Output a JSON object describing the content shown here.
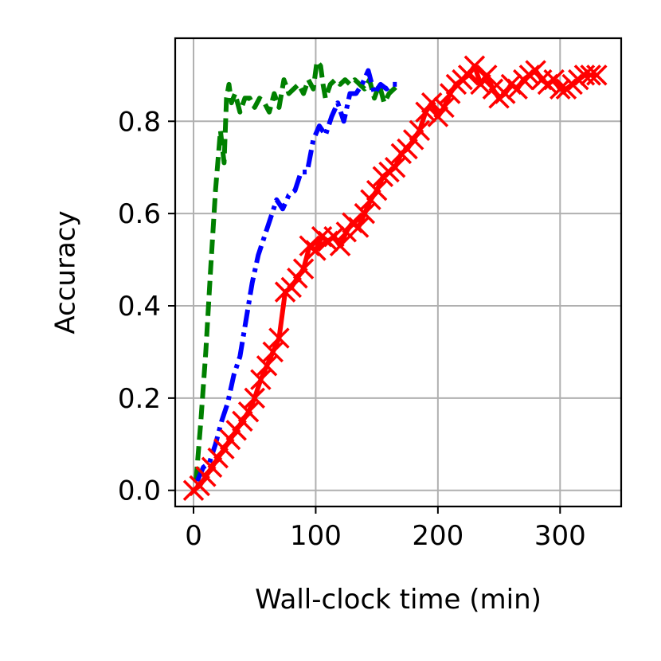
{
  "chart_data": {
    "type": "line",
    "title": "",
    "xlabel": "Wall-clock time (min)",
    "ylabel": "Accuracy",
    "xlim": [
      -15,
      350
    ],
    "ylim": [
      -0.035,
      0.98
    ],
    "xticks": [
      0,
      100,
      200,
      300
    ],
    "xtick_labels": [
      "0",
      "100",
      "200",
      "300"
    ],
    "yticks": [
      0.0,
      0.2,
      0.4,
      0.6,
      0.8
    ],
    "ytick_labels": [
      "0.0",
      "0.2",
      "0.4",
      "0.6",
      "0.8"
    ],
    "grid": true,
    "series": [
      {
        "color": "#008000",
        "line_style": "dashed",
        "marker": "none",
        "x": [
          2,
          6,
          10,
          14,
          18,
          22,
          25,
          27,
          29,
          31,
          34,
          38,
          42,
          46,
          50,
          54,
          58,
          62,
          66,
          70,
          74,
          78,
          82,
          86,
          90,
          94,
          98,
          101,
          104,
          106,
          108,
          112,
          116,
          120,
          124,
          128,
          132,
          136,
          140,
          144,
          148,
          152,
          156,
          160,
          164,
          168
        ],
        "y": [
          0.02,
          0.15,
          0.3,
          0.48,
          0.65,
          0.78,
          0.71,
          0.85,
          0.88,
          0.84,
          0.86,
          0.82,
          0.85,
          0.85,
          0.83,
          0.85,
          0.84,
          0.82,
          0.86,
          0.83,
          0.89,
          0.86,
          0.87,
          0.88,
          0.86,
          0.89,
          0.87,
          0.93,
          0.92,
          0.88,
          0.85,
          0.88,
          0.89,
          0.88,
          0.89,
          0.88,
          0.89,
          0.88,
          0.87,
          0.89,
          0.85,
          0.88,
          0.84,
          0.86,
          0.87,
          0.88
        ]
      },
      {
        "color": "#0000ff",
        "line_style": "dashdot",
        "marker": "none",
        "x": [
          3,
          8,
          13,
          18,
          23,
          28,
          33,
          38,
          43,
          48,
          53,
          58,
          63,
          68,
          73,
          78,
          83,
          88,
          93,
          98,
          103,
          108,
          113,
          118,
          123,
          128,
          133,
          138,
          143,
          148,
          153,
          158,
          163,
          168
        ],
        "y": [
          0.02,
          0.05,
          0.06,
          0.1,
          0.15,
          0.19,
          0.25,
          0.29,
          0.37,
          0.45,
          0.51,
          0.55,
          0.59,
          0.63,
          0.61,
          0.64,
          0.65,
          0.69,
          0.69,
          0.76,
          0.79,
          0.77,
          0.81,
          0.84,
          0.8,
          0.86,
          0.86,
          0.88,
          0.91,
          0.86,
          0.88,
          0.87,
          0.88,
          0.88
        ]
      },
      {
        "color": "#ff0000",
        "line_style": "solid",
        "marker": "x",
        "x": [
          0,
          5,
          10,
          15,
          20,
          25,
          30,
          35,
          40,
          45,
          50,
          55,
          60,
          65,
          70,
          75,
          80,
          85,
          90,
          95,
          100,
          105,
          110,
          115,
          120,
          125,
          130,
          135,
          140,
          145,
          150,
          155,
          160,
          165,
          170,
          175,
          180,
          185,
          190,
          195,
          200,
          205,
          210,
          215,
          220,
          225,
          230,
          235,
          240,
          245,
          250,
          255,
          260,
          265,
          270,
          275,
          280,
          285,
          290,
          295,
          300,
          305,
          310,
          315,
          320,
          325,
          330
        ],
        "y": [
          0.0,
          0.01,
          0.03,
          0.05,
          0.07,
          0.09,
          0.11,
          0.13,
          0.15,
          0.17,
          0.2,
          0.24,
          0.27,
          0.3,
          0.33,
          0.43,
          0.44,
          0.46,
          0.48,
          0.53,
          0.52,
          0.55,
          0.54,
          0.55,
          0.53,
          0.56,
          0.58,
          0.57,
          0.6,
          0.63,
          0.65,
          0.68,
          0.69,
          0.7,
          0.73,
          0.74,
          0.76,
          0.78,
          0.82,
          0.84,
          0.81,
          0.83,
          0.86,
          0.88,
          0.89,
          0.9,
          0.92,
          0.88,
          0.9,
          0.87,
          0.85,
          0.86,
          0.88,
          0.87,
          0.89,
          0.9,
          0.91,
          0.89,
          0.88,
          0.89,
          0.87,
          0.87,
          0.88,
          0.89,
          0.9,
          0.9,
          0.9
        ]
      }
    ]
  }
}
